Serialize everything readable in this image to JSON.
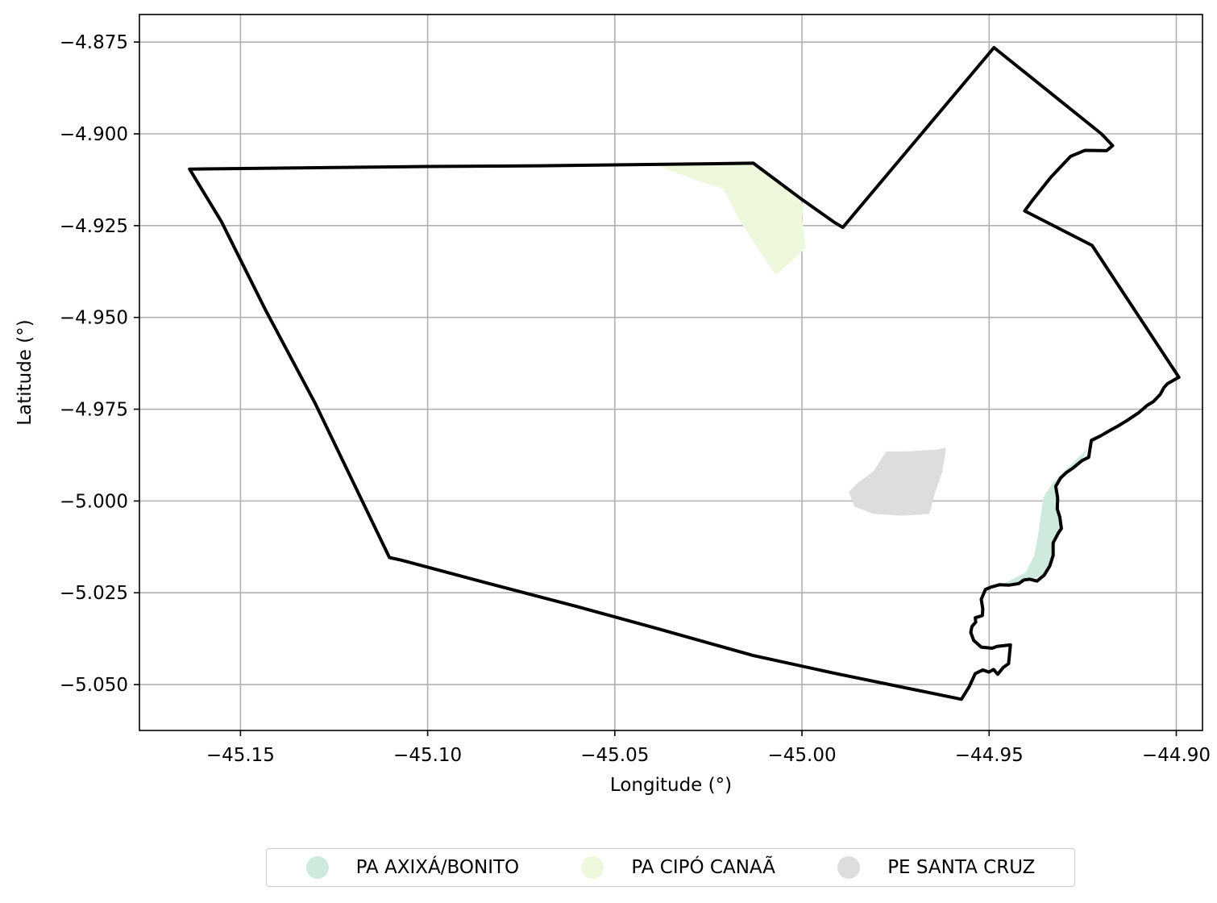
{
  "chart_data": {
    "type": "map",
    "xlabel": "Longitude (°)",
    "ylabel": "Latitude (°)",
    "xlim": [
      -45.177,
      -44.893
    ],
    "ylim": [
      -5.0625,
      -4.8675
    ],
    "xticks": [
      -45.15,
      -45.1,
      -45.05,
      -45.0,
      -44.95,
      -44.9
    ],
    "xtick_labels": [
      "−45.15",
      "−45.10",
      "−45.05",
      "−45.00",
      "−44.95",
      "−44.90"
    ],
    "yticks": [
      -4.875,
      -4.9,
      -4.925,
      -4.95,
      -4.975,
      -5.0,
      -5.025,
      -5.05
    ],
    "ytick_labels": [
      "−4.875",
      "−4.900",
      "−4.925",
      "−4.950",
      "−4.975",
      "−5.000",
      "−5.025",
      "−5.050"
    ],
    "grid": true,
    "boundary": {
      "color": "#000000",
      "coords": [
        [
          -45.1636,
          -4.9096
        ],
        [
          -45.1551,
          -4.9239
        ],
        [
          -45.1433,
          -4.948
        ],
        [
          -45.1301,
          -4.9733
        ],
        [
          -45.1102,
          -5.0154
        ],
        [
          -45.1071,
          -5.0161
        ],
        [
          -45.0836,
          -5.0225
        ],
        [
          -45.0603,
          -5.0287
        ],
        [
          -45.0388,
          -5.0347
        ],
        [
          -45.013,
          -5.0421
        ],
        [
          -44.9909,
          -5.047
        ],
        [
          -44.9574,
          -5.054
        ],
        [
          -44.9553,
          -5.0505
        ],
        [
          -44.9537,
          -5.047
        ],
        [
          -44.9517,
          -5.046
        ],
        [
          -44.9501,
          -5.0466
        ],
        [
          -44.9488,
          -5.0459
        ],
        [
          -44.9477,
          -5.0472
        ],
        [
          -44.9462,
          -5.0453
        ],
        [
          -44.9448,
          -5.0443
        ],
        [
          -44.9443,
          -5.0392
        ],
        [
          -44.9479,
          -5.0396
        ],
        [
          -44.9492,
          -5.0401
        ],
        [
          -44.9521,
          -5.0398
        ],
        [
          -44.9541,
          -5.038
        ],
        [
          -44.9549,
          -5.0358
        ],
        [
          -44.9546,
          -5.0342
        ],
        [
          -44.9536,
          -5.033
        ],
        [
          -44.9537,
          -5.0318
        ],
        [
          -44.9518,
          -5.0312
        ],
        [
          -44.9517,
          -5.0294
        ],
        [
          -44.9521,
          -5.0268
        ],
        [
          -44.951,
          -5.0241
        ],
        [
          -44.9493,
          -5.0234
        ],
        [
          -44.9472,
          -5.0228
        ],
        [
          -44.9446,
          -5.0229
        ],
        [
          -44.9421,
          -5.0225
        ],
        [
          -44.9407,
          -5.0215
        ],
        [
          -44.9391,
          -5.0213
        ],
        [
          -44.9372,
          -5.0218
        ],
        [
          -44.9353,
          -5.0202
        ],
        [
          -44.9338,
          -5.0177
        ],
        [
          -44.9329,
          -5.0148
        ],
        [
          -44.9329,
          -5.0114
        ],
        [
          -44.9315,
          -5.0087
        ],
        [
          -44.9307,
          -5.0075
        ],
        [
          -44.9311,
          -5.0044
        ],
        [
          -44.9318,
          -5.0022
        ],
        [
          -44.9317,
          -4.9992
        ],
        [
          -44.9322,
          -4.996
        ],
        [
          -44.9309,
          -4.9937
        ],
        [
          -44.9293,
          -4.9922
        ],
        [
          -44.9277,
          -4.9911
        ],
        [
          -44.9252,
          -4.989
        ],
        [
          -44.9234,
          -4.9881
        ],
        [
          -44.9227,
          -4.9835
        ],
        [
          -44.9201,
          -4.9822
        ],
        [
          -44.9174,
          -4.9806
        ],
        [
          -44.9156,
          -4.9796
        ],
        [
          -44.9132,
          -4.9781
        ],
        [
          -44.9101,
          -4.976
        ],
        [
          -44.9077,
          -4.9739
        ],
        [
          -44.9061,
          -4.9729
        ],
        [
          -44.9043,
          -4.971
        ],
        [
          -44.9033,
          -4.9691
        ],
        [
          -44.9023,
          -4.968
        ],
        [
          -44.8993,
          -4.9663
        ],
        [
          -44.9225,
          -4.9304
        ],
        [
          -44.9405,
          -4.921
        ],
        [
          -44.9385,
          -4.9182
        ],
        [
          -44.9335,
          -4.9118
        ],
        [
          -44.9282,
          -4.9061
        ],
        [
          -44.9244,
          -4.9045
        ],
        [
          -44.9186,
          -4.9046
        ],
        [
          -44.917,
          -4.9032
        ],
        [
          -44.92,
          -4.9
        ],
        [
          -44.9487,
          -4.8765
        ],
        [
          -44.9891,
          -4.9255
        ],
        [
          -44.9915,
          -4.924
        ],
        [
          -45.0005,
          -4.9175
        ],
        [
          -45.013,
          -4.908
        ],
        [
          -45.07,
          -4.9087
        ],
        [
          -45.1,
          -4.9089
        ],
        [
          -45.1636,
          -4.9096
        ]
      ]
    },
    "areas": [
      {
        "name": "PA AXIXÁ/BONITO",
        "color": "#cdeadc",
        "coords": [
          [
            -44.946,
            -5.0225
          ],
          [
            -44.9403,
            -5.0195
          ],
          [
            -44.938,
            -5.015
          ],
          [
            -44.937,
            -5.01
          ],
          [
            -44.9362,
            -5.004
          ],
          [
            -44.9355,
            -4.999
          ],
          [
            -44.933,
            -4.995
          ],
          [
            -44.93,
            -4.992
          ],
          [
            -44.926,
            -4.988
          ],
          [
            -44.922,
            -4.984
          ],
          [
            -44.918,
            -4.981
          ],
          [
            -44.912,
            -4.977
          ],
          [
            -44.906,
            -4.973
          ],
          [
            -44.903,
            -4.97
          ],
          [
            -44.9043,
            -4.971
          ],
          [
            -44.9101,
            -4.976
          ],
          [
            -44.9156,
            -4.9796
          ],
          [
            -44.9227,
            -4.9835
          ],
          [
            -44.9252,
            -4.989
          ],
          [
            -44.9293,
            -4.9922
          ],
          [
            -44.9322,
            -4.996
          ],
          [
            -44.9317,
            -4.9992
          ],
          [
            -44.9311,
            -5.0044
          ],
          [
            -44.9315,
            -5.0087
          ],
          [
            -44.9329,
            -5.0114
          ],
          [
            -44.9329,
            -5.0148
          ],
          [
            -44.9353,
            -5.0202
          ],
          [
            -44.9391,
            -5.0213
          ],
          [
            -44.9421,
            -5.0225
          ]
        ]
      },
      {
        "name": "PA CIPÓ CANAÃ",
        "color": "#eef8dc",
        "coords": [
          [
            -45.039,
            -4.9085
          ],
          [
            -45.013,
            -4.908
          ],
          [
            -45.004,
            -4.915
          ],
          [
            -44.9995,
            -4.9195
          ],
          [
            -45.0,
            -4.923
          ],
          [
            -44.999,
            -4.931
          ],
          [
            -45.002,
            -4.934
          ],
          [
            -45.007,
            -4.9385
          ],
          [
            -45.012,
            -4.931
          ],
          [
            -45.017,
            -4.923
          ],
          [
            -45.021,
            -4.915
          ],
          [
            -45.03,
            -4.912
          ]
        ]
      },
      {
        "name": "PE SANTA CRUZ",
        "color": "#dddddd",
        "coords": [
          [
            -44.9615,
            -4.9855
          ],
          [
            -44.964,
            -4.986
          ],
          [
            -44.972,
            -4.9865
          ],
          [
            -44.9775,
            -4.9865
          ],
          [
            -44.981,
            -4.992
          ],
          [
            -44.985,
            -4.995
          ],
          [
            -44.9875,
            -4.9975
          ],
          [
            -44.986,
            -5.0015
          ],
          [
            -44.981,
            -5.0035
          ],
          [
            -44.973,
            -5.004
          ],
          [
            -44.966,
            -5.0035
          ],
          [
            -44.9645,
            -4.998
          ],
          [
            -44.9625,
            -4.992
          ]
        ]
      }
    ],
    "legend": {
      "position": "bottom-center",
      "items": [
        {
          "label": "PA AXIXÁ/BONITO",
          "color": "#cdeadc"
        },
        {
          "label": "PA CIPÓ CANAÃ",
          "color": "#eef8dc"
        },
        {
          "label": "PE SANTA CRUZ",
          "color": "#dddddd"
        }
      ]
    }
  }
}
